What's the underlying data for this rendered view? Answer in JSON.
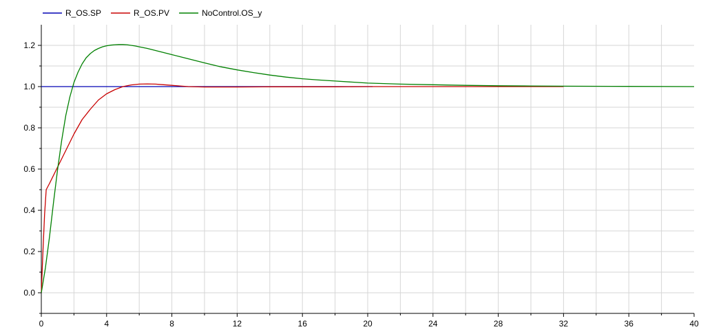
{
  "chart_data": {
    "type": "line",
    "xlim": [
      0,
      40
    ],
    "ylim": [
      -0.1,
      1.3
    ],
    "x_ticks": [
      0,
      4,
      8,
      12,
      16,
      20,
      24,
      28,
      32,
      36,
      40
    ],
    "y_ticks": [
      0.0,
      0.2,
      0.4,
      0.6,
      0.8,
      1.0,
      1.2
    ],
    "x_tick_labels": [
      "0",
      "4",
      "8",
      "12",
      "16",
      "20",
      "24",
      "28",
      "32",
      "36",
      "40"
    ],
    "y_tick_labels": [
      "0.0",
      "0.2",
      "0.4",
      "0.6",
      "0.8",
      "1.0",
      "1.2"
    ],
    "grid": true,
    "legend_position": "top-left",
    "series": [
      {
        "name": "R_OS.SP",
        "color": "#0000b4",
        "x": [
          0,
          20.3
        ],
        "y": [
          1.0,
          1.0
        ]
      },
      {
        "name": "R_OS.PV",
        "color": "#c80000",
        "x": [
          0,
          0.1,
          0.2,
          0.3,
          0.5,
          1.0,
          1.5,
          2.0,
          2.5,
          3.0,
          3.5,
          4.0,
          4.5,
          5.0,
          5.5,
          6.0,
          6.5,
          7.0,
          7.5,
          8.0,
          8.5,
          9.0,
          10.0,
          11.0,
          12.0,
          14.0,
          16.0,
          18.0,
          20.0,
          24.0,
          28.0,
          32.0
        ],
        "y": [
          0.0,
          0.2,
          0.38,
          0.5,
          0.53,
          0.61,
          0.69,
          0.77,
          0.84,
          0.89,
          0.935,
          0.965,
          0.985,
          1.0,
          1.008,
          1.012,
          1.013,
          1.012,
          1.009,
          1.006,
          1.003,
          1.0,
          0.998,
          0.998,
          0.998,
          0.999,
          0.999,
          0.999,
          1.0,
          1.0,
          1.0,
          1.0
        ]
      },
      {
        "name": "NoControl.OS_y",
        "color": "#008000",
        "x": [
          0,
          0.25,
          0.5,
          0.75,
          1.0,
          1.25,
          1.5,
          1.75,
          2.0,
          2.25,
          2.5,
          2.75,
          3.0,
          3.25,
          3.5,
          3.75,
          4.0,
          4.25,
          4.5,
          4.75,
          5.0,
          5.25,
          5.5,
          5.75,
          6.0,
          6.5,
          7.0,
          7.5,
          8.0,
          8.5,
          9.0,
          10.0,
          11.0,
          12.0,
          13.0,
          14.0,
          15.0,
          16.0,
          17.0,
          18.0,
          19.0,
          20.0,
          22.0,
          24.0,
          26.0,
          28.0,
          30.0,
          32.0,
          36.0,
          40.0
        ],
        "y": [
          0.0,
          0.12,
          0.27,
          0.44,
          0.6,
          0.74,
          0.86,
          0.95,
          1.02,
          1.07,
          1.11,
          1.14,
          1.16,
          1.175,
          1.185,
          1.193,
          1.198,
          1.201,
          1.203,
          1.204,
          1.204,
          1.203,
          1.2,
          1.197,
          1.193,
          1.185,
          1.175,
          1.165,
          1.155,
          1.145,
          1.135,
          1.115,
          1.096,
          1.081,
          1.068,
          1.056,
          1.046,
          1.038,
          1.032,
          1.027,
          1.022,
          1.017,
          1.012,
          1.009,
          1.006,
          1.004,
          1.003,
          1.002,
          1.001,
          1.0
        ]
      }
    ]
  }
}
